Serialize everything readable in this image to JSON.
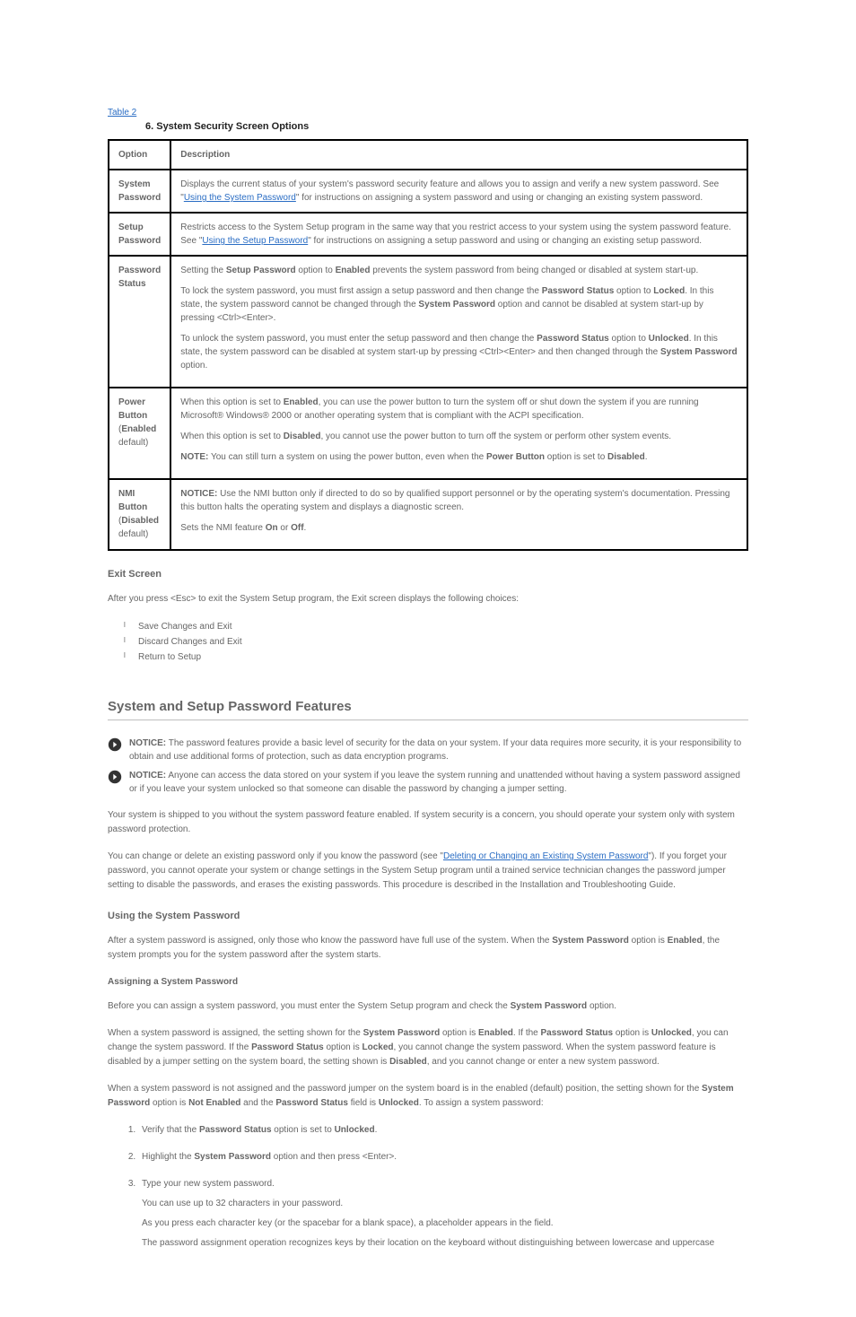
{
  "top_link": "Table 2",
  "table_caption": "6. System Security Screen Options",
  "columns": [
    "Option",
    "Description"
  ],
  "rows": [
    {
      "option": "System Password",
      "desc_prefix": "Displays the current status of your system's password security feature and allows you to assign and verify a new system password. See \"",
      "desc_link": "Using the System Password",
      "desc_suffix": "\" for instructions on assigning a system password and using or changing an existing system password."
    },
    {
      "option": "Setup Password",
      "desc_prefix": "Restricts access to the System Setup program in the same way that you restrict access to your system using the system password feature. See \"",
      "desc_link": "Using the Setup Password",
      "desc_suffix": "\" for instructions on assigning a setup password and using or changing an existing setup password."
    },
    {
      "option": "Password Status",
      "desc_p1_html": "Setting the <b>Setup Password</b> option to <b>Enabled</b> prevents the system password from being changed or disabled at system start-up.",
      "desc_p2_html": "To lock the system password, you must first assign a setup password and then change the <b>Password Status</b> option to <b>Locked</b>. In this state, the system password cannot be changed through the <b>System Password</b> option and cannot be disabled at system start-up by pressing &lt;Ctrl&gt;&lt;Enter&gt;.",
      "desc_p3_html": "To unlock the system password, you must enter the setup password and then change the <b>Password Status</b> option to <b>Unlocked</b>. In this state, the system password can be disabled at system start-up by pressing &lt;Ctrl&gt;&lt;Enter&gt; and then changed through the <b>System Password</b> option."
    },
    {
      "option": "Power Button (Enabled default)",
      "desc_p1_html": "When this option is set to <b>Enabled</b>, you can use the power button to turn the system off or shut down the system if you are running Microsoft® Windows® 2000 or another operating system that is compliant with the ACPI specification.",
      "desc_p2_html": "When this option is set to <b>Disabled</b>, you cannot use the power button to turn off the system or perform other system events.",
      "desc_note_html": "<b>NOTE:</b> You can still turn a system on using the power button, even when the <b>Power Button</b> option is set to <b>Disabled</b>."
    },
    {
      "option": "NMI Button (Disabled default)",
      "desc_p1_html": "<b>NOTICE:</b> Use the NMI button only if directed to do so by qualified support personnel or by the operating system's documentation. Pressing this button halts the operating system and displays a diagnostic screen.",
      "desc_p2_html": "Sets the NMI feature <b>On</b> or <b>Off</b>."
    }
  ],
  "exit_heading": "Exit Screen",
  "exit_intro": "After you press <Esc> to exit the System Setup program, the Exit screen displays the following choices:",
  "exit_items": [
    "Save Changes and Exit",
    "Discard Changes and Exit",
    "Return to Setup"
  ],
  "pw_heading": "System and Setup Password Features",
  "pw_rule": true,
  "notices": [
    "NOTICE: The password features provide a basic level of security for the data on your system. If your data requires more security, it is your responsibility to obtain and use additional forms of protection, such as data encryption programs.",
    "NOTICE: Anyone can access the data stored on your system if you leave the system running and unattended without having a system password assigned or if you leave your system unlocked so that someone can disable the password by changing a jumper setting."
  ],
  "pw_para1_prefix": "Your system is shipped to you without the system password feature enabled. If system security is a concern, you should operate your system only with system password protection.",
  "pw_para2_prefix": "You can change or delete an existing password only if you know the password (see \"",
  "pw_para2_link": "Deleting or Changing an Existing System Password",
  "pw_para2_suffix": "\"). If you forget your password, you cannot operate your system or change settings in the System Setup program until a trained service technician changes the password jumper setting to disable the passwords, and erases the existing passwords. This procedure is described in the Installation and Troubleshooting Guide.",
  "sys_pw_heading": "Using the System Password",
  "sys_pw_para_html": "After a system password is assigned, only those who know the password have full use of the system. When the <b>System Password</b> option is <b>Enabled</b>, the system prompts you for the system password after the system starts.",
  "assign_heading": "Assigning a System Password",
  "assign_para_html": "Before you can assign a system password, you must enter the System Setup program and check the <b>System Password</b> option.",
  "assign_para2_html": "When a system password is assigned, the setting shown for the <b>System Password</b> option is <b>Enabled</b>. If the <b>Password Status</b> option is <b>Unlocked</b>, you can change the system password. If the <b>Password Status</b> option is <b>Locked</b>, you cannot change the system password. When the system password feature is disabled by a jumper setting on the system board, the setting shown is <b>Disabled</b>, and you cannot change or enter a new system password.",
  "assign_para3_html": "When a system password is not assigned and the password jumper on the system board is in the enabled (default) position, the setting shown for the <b>System Password</b> option is <b>Not Enabled</b> and the <b>Password Status</b> field is <b>Unlocked</b>. To assign a system password:",
  "steps": [
    {
      "main_html": "Verify that the <b>Password Status</b> option is set to <b>Unlocked</b>."
    },
    {
      "main_html": "Highlight the <b>System Password</b> option and then press &lt;Enter&gt;."
    },
    {
      "main_html": "Type your new system password.",
      "p1": "You can use up to 32 characters in your password.",
      "p2": "As you press each character key (or the spacebar for a blank space), a placeholder appears in the field.",
      "p3": "The password assignment operation recognizes keys by their location on the keyboard without distinguishing between lowercase and uppercase"
    }
  ]
}
